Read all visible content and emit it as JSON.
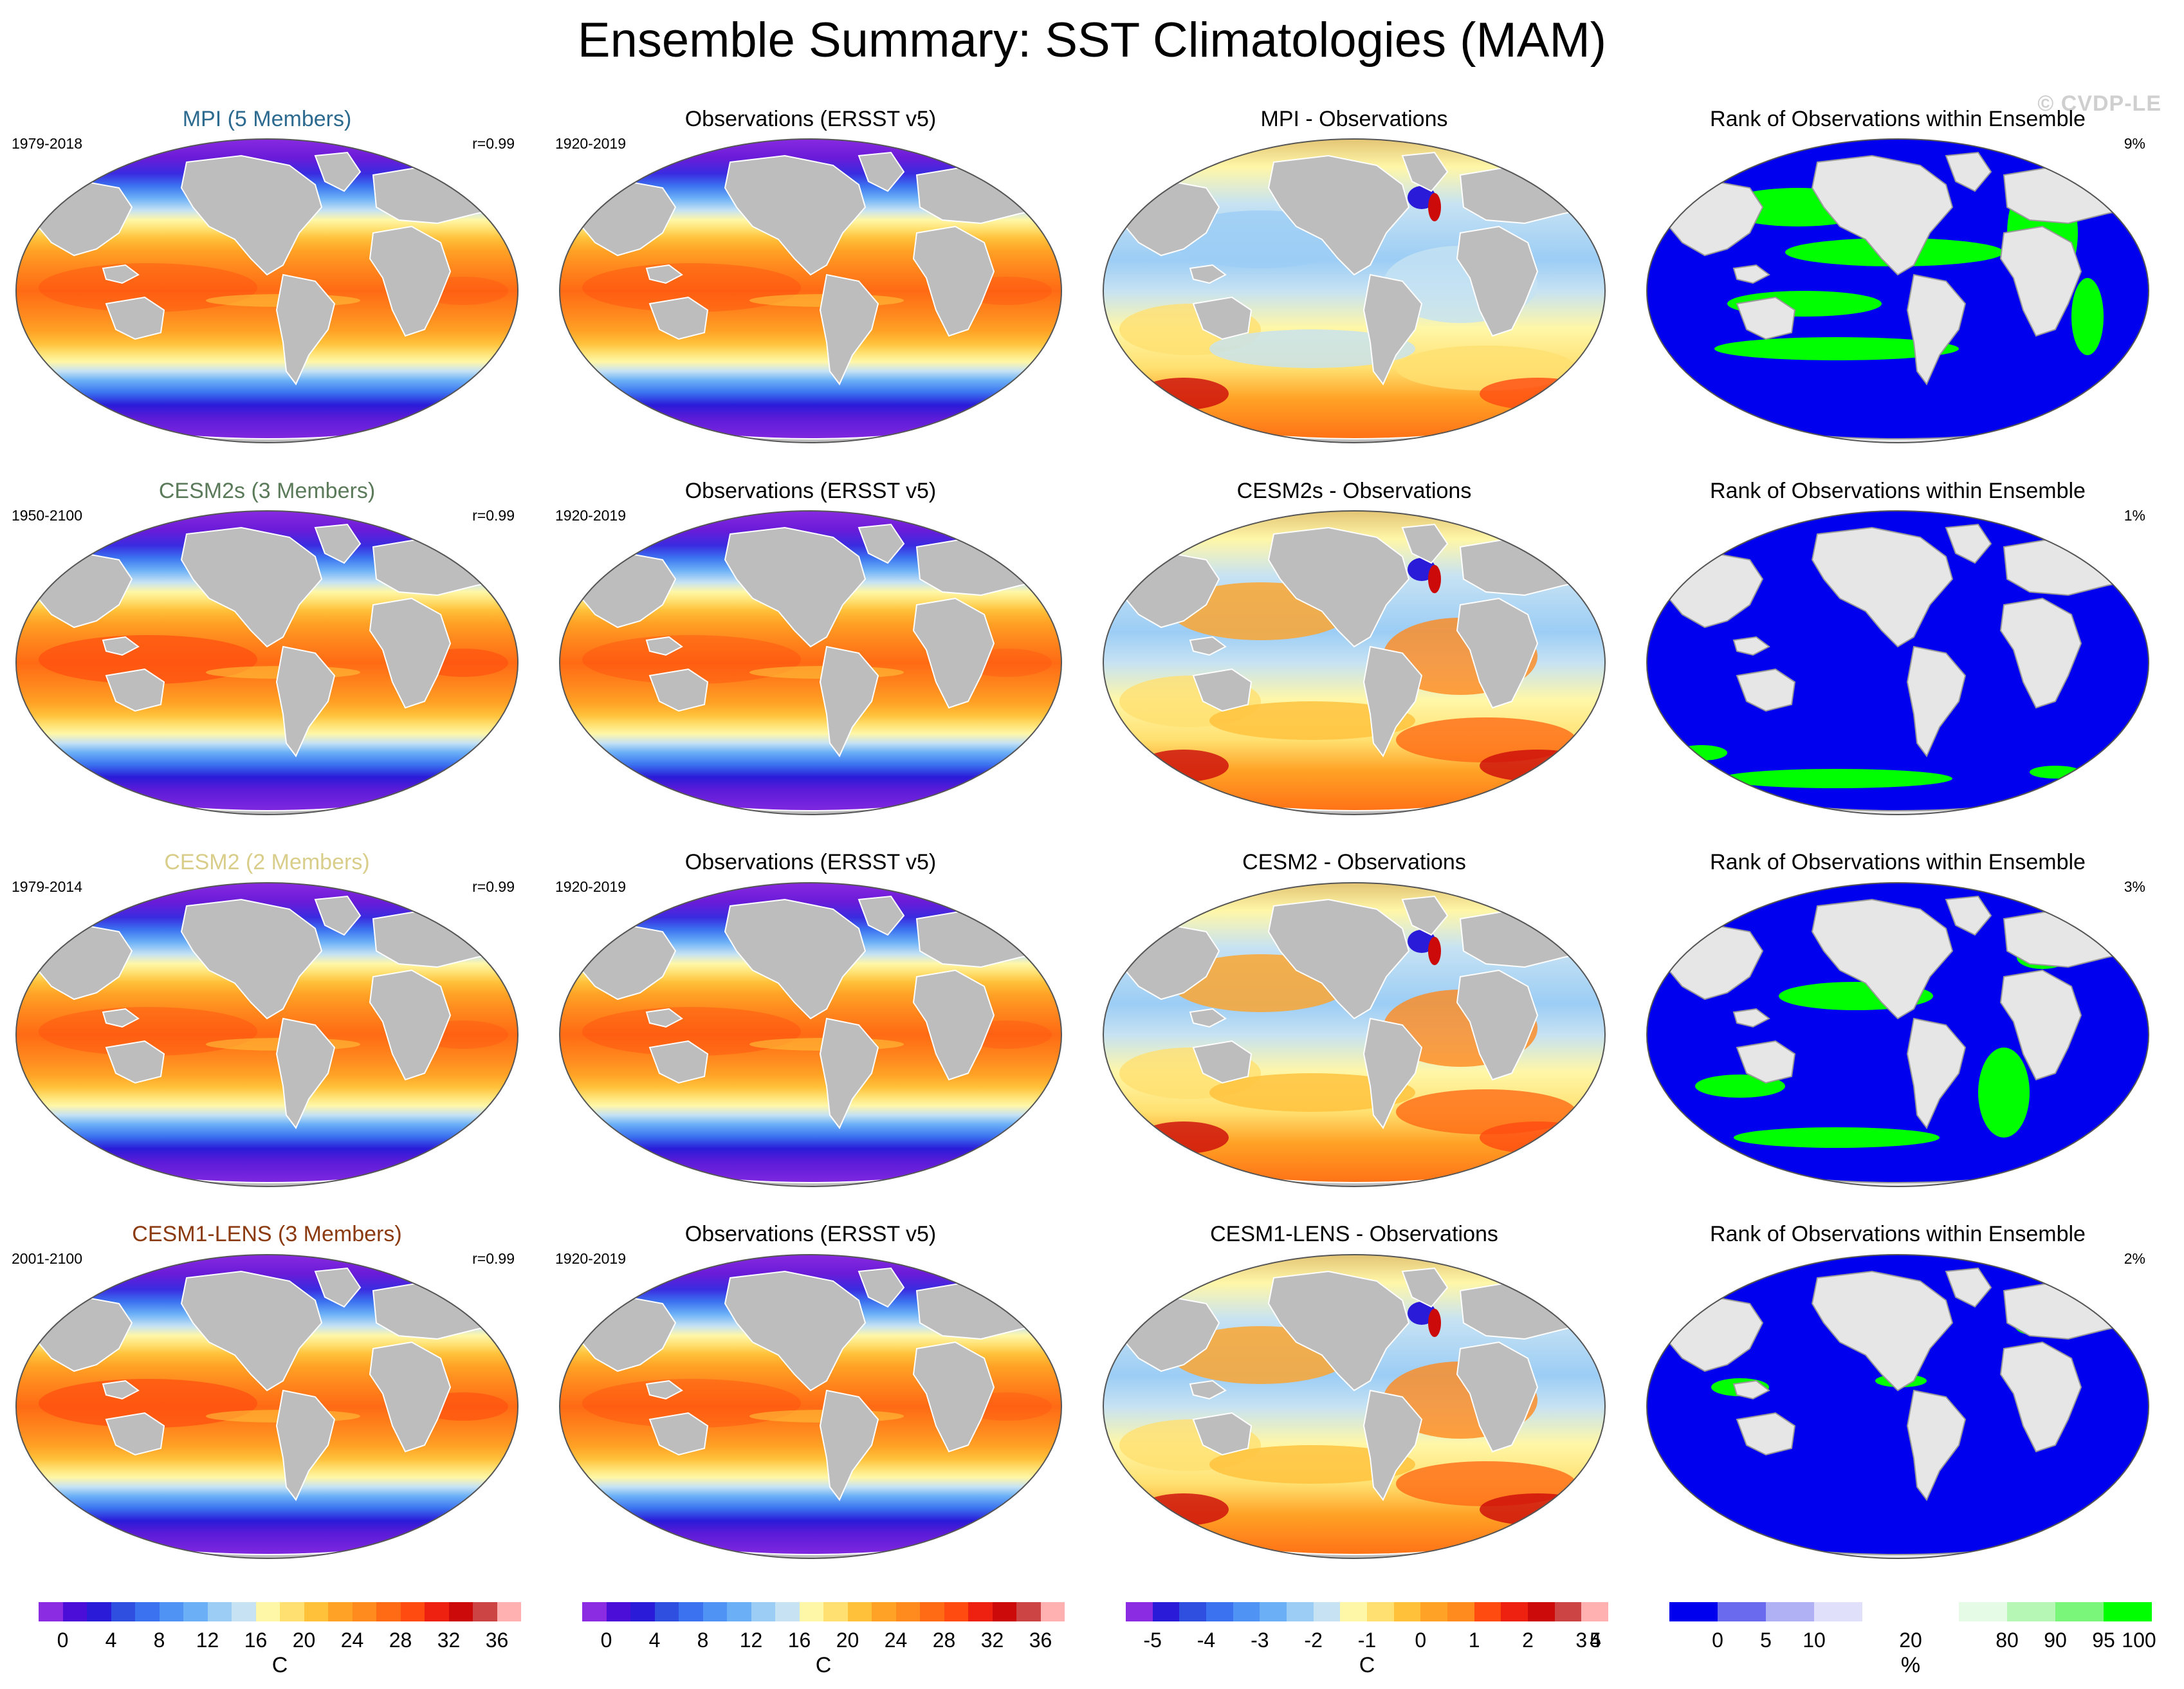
{
  "title": "Ensemble Summary: SST Climatologies (MAM)",
  "watermark": "© CVDP-LE",
  "colors": {
    "land": "#bdbdbd",
    "unmapped": "#e6e6e6",
    "rank_low": "#0000ee",
    "rank_high": "#00ff00",
    "title_mpi": "#2d6a8f",
    "title_cesm2s": "#5a7a5a",
    "title_cesm2": "#d9cd8a",
    "title_cesm1lens": "#8b3a10"
  },
  "rows": [
    {
      "model_title": "MPI (5 Members)",
      "model_color": "#2d6a8f",
      "model_years": "1979-2018",
      "model_r": "r=0.99",
      "obs_title": "Observations (ERSST v5)",
      "obs_years": "1920-2019",
      "diff_title": "MPI - Observations",
      "rank_title": "Rank of Observations within Ensemble",
      "rank_pct": "9%"
    },
    {
      "model_title": "CESM2s (3 Members)",
      "model_color": "#5a7a5a",
      "model_years": "1950-2100",
      "model_r": "r=0.99",
      "obs_title": "Observations (ERSST v5)",
      "obs_years": "1920-2019",
      "diff_title": "CESM2s - Observations",
      "rank_title": "Rank of Observations within Ensemble",
      "rank_pct": "1%"
    },
    {
      "model_title": "CESM2 (2 Members)",
      "model_color": "#d9cd8a",
      "model_years": "1979-2014",
      "model_r": "r=0.99",
      "obs_title": "Observations (ERSST v5)",
      "obs_years": "1920-2019",
      "diff_title": "CESM2 - Observations",
      "rank_title": "Rank of Observations within Ensemble",
      "rank_pct": "3%"
    },
    {
      "model_title": "CESM1-LENS (3 Members)",
      "model_color": "#8b3a10",
      "model_years": "2001-2100",
      "model_r": "r=0.99",
      "obs_title": "Observations (ERSST v5)",
      "obs_years": "1920-2019",
      "diff_title": "CESM1-LENS - Observations",
      "rank_title": "Rank of Observations within Ensemble",
      "rank_pct": "2%"
    }
  ],
  "colorbars": [
    {
      "unit": "C",
      "ticks": [
        "0",
        "4",
        "8",
        "12",
        "16",
        "20",
        "24",
        "28",
        "32",
        "36"
      ],
      "colors": [
        "#8b2be2",
        "#4b0dd8",
        "#2a1bd8",
        "#2e4fe0",
        "#3b72f0",
        "#4f93f5",
        "#6bb0f7",
        "#9ccdf5",
        "#c6e2f3",
        "#fff7a8",
        "#ffe070",
        "#ffc13a",
        "#ffa225",
        "#ff8a1e",
        "#ff6a14",
        "#ff4a10",
        "#ee2010",
        "#cc0a0a",
        "#cc4444",
        "#ffb0b0"
      ]
    },
    {
      "unit": "C",
      "ticks": [
        "0",
        "4",
        "8",
        "12",
        "16",
        "20",
        "24",
        "28",
        "32",
        "36"
      ],
      "colors": [
        "#8b2be2",
        "#4b0dd8",
        "#2a1bd8",
        "#2e4fe0",
        "#3b72f0",
        "#4f93f5",
        "#6bb0f7",
        "#9ccdf5",
        "#c6e2f3",
        "#fff7a8",
        "#ffe070",
        "#ffc13a",
        "#ffa225",
        "#ff8a1e",
        "#ff6a14",
        "#ff4a10",
        "#ee2010",
        "#cc0a0a",
        "#cc4444",
        "#ffb0b0"
      ]
    },
    {
      "unit": "C",
      "ticks": [
        "-5",
        "-4",
        "-3",
        "-2",
        "-1",
        "0",
        "1",
        "2",
        "3",
        "4",
        "5"
      ],
      "colors": [
        "#8b2be2",
        "#2a1bd8",
        "#2e4fe0",
        "#3b72f0",
        "#4f93f5",
        "#6bb0f7",
        "#9ccdf5",
        "#c6e2f3",
        "#fff7a8",
        "#ffe070",
        "#ffc13a",
        "#ffa225",
        "#ff8a1e",
        "#ff4a10",
        "#ee2010",
        "#cc0a0a",
        "#cc4444",
        "#ffb0b0"
      ]
    },
    {
      "unit": "%",
      "ticks": [
        "0",
        "5",
        "10",
        "20",
        "80",
        "90",
        "95",
        "100"
      ],
      "colors": [
        "#0000ee",
        "#6a6aee",
        "#b0b0f5",
        "#e0e0fb",
        "#ffffff",
        "#ffffff",
        "#e6fbe6",
        "#b6f7b6",
        "#7af77a",
        "#00ff00"
      ]
    }
  ]
}
